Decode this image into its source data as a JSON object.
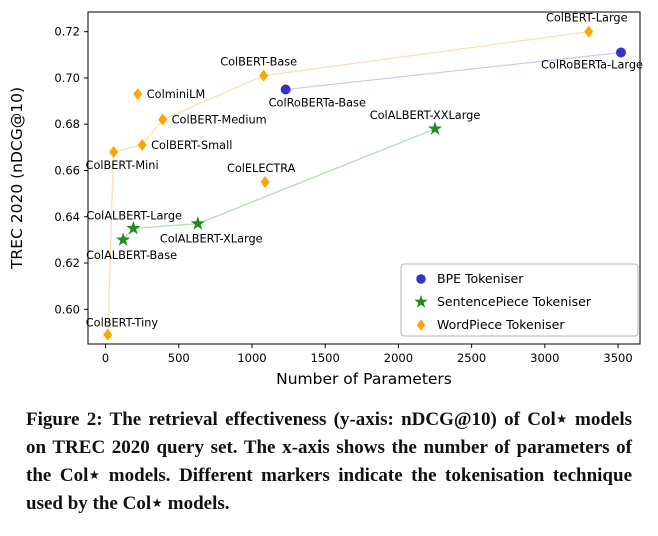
{
  "chart_data": {
    "type": "scatter",
    "title": "",
    "xlabel": "Number of Parameters",
    "ylabel": "TREC 2020 (nDCG@10)",
    "xlim": [
      -120,
      3650
    ],
    "ylim": [
      0.585,
      0.7285
    ],
    "xticks": [
      0,
      500,
      1000,
      1500,
      2000,
      2500,
      3000,
      3500
    ],
    "yticks": [
      0.6,
      0.62,
      0.64,
      0.66,
      0.68,
      0.7,
      0.72
    ],
    "grid": false,
    "legend_position": "lower right",
    "series": [
      {
        "name": "BPE Tokeniser",
        "marker": "circle",
        "color": "#3232cd",
        "line_color": "#c9c9f4",
        "points": [
          {
            "label": "ColRoBERTa-Base",
            "x": 1230,
            "y": 0.695,
            "anchor": "start",
            "dx": -17,
            "dy": 17
          },
          {
            "label": "ColRoBERTa-Large",
            "x": 3520,
            "y": 0.711,
            "anchor": "end",
            "dx": 22,
            "dy": 16
          }
        ]
      },
      {
        "name": "SentencePiece Tokeniser",
        "marker": "star",
        "color": "#1e8c1e",
        "line_color": "#b7dcb7",
        "points": [
          {
            "label": "ColALBERT-Base",
            "x": 120,
            "y": 0.63,
            "anchor": "start",
            "dx": -37,
            "dy": 19
          },
          {
            "label": "ColALBERT-Large",
            "x": 190,
            "y": 0.635,
            "anchor": "start",
            "dx": -47,
            "dy": -9
          },
          {
            "label": "ColALBERT-XLarge",
            "x": 630,
            "y": 0.637,
            "anchor": "start",
            "dx": -38,
            "dy": 19
          },
          {
            "label": "ColALBERT-XXLarge",
            "x": 2250,
            "y": 0.678,
            "anchor": "middle",
            "dx": -10,
            "dy": -10
          }
        ]
      },
      {
        "name": "WordPiece Tokeniser",
        "marker": "diamond",
        "color": "#ffa500",
        "line_color": "#ffdfae",
        "points": [
          {
            "label": "ColBERT-Tiny",
            "x": 15,
            "y": 0.589,
            "anchor": "start",
            "dx": -22,
            "dy": -8
          },
          {
            "label": "ColBERT-Mini",
            "x": 55,
            "y": 0.668,
            "anchor": "start",
            "dx": -28,
            "dy": 17
          },
          {
            "label": "ColBERT-Small",
            "x": 250,
            "y": 0.671,
            "anchor": "start",
            "dx": 9,
            "dy": 4
          },
          {
            "label": "ColBERT-Medium",
            "x": 390,
            "y": 0.682,
            "anchor": "start",
            "dx": 9,
            "dy": 4
          },
          {
            "label": "ColBERT-Base",
            "x": 1080,
            "y": 0.701,
            "anchor": "middle",
            "dx": -5,
            "dy": -10
          },
          {
            "label": "ColBERT-Large",
            "x": 3300,
            "y": 0.72,
            "anchor": "middle",
            "dx": -2,
            "dy": -10
          },
          {
            "label": "ColminiLM",
            "x": 220,
            "y": 0.693,
            "anchor": "start",
            "dx": 9,
            "dy": 4,
            "in_line": false
          },
          {
            "label": "ColELECTRA",
            "x": 1090,
            "y": 0.655,
            "anchor": "middle",
            "dx": -4,
            "dy": -10,
            "in_line": false
          }
        ]
      }
    ]
  },
  "caption": {
    "text": "Figure 2: The retrieval effectiveness (y-axis: nDCG@10) of Col⋆ models on TREC 2020 query set. The x-axis shows the number of parameters of the Col⋆ models. Different markers indicate the tokenisation technique used by the Col⋆ models."
  }
}
